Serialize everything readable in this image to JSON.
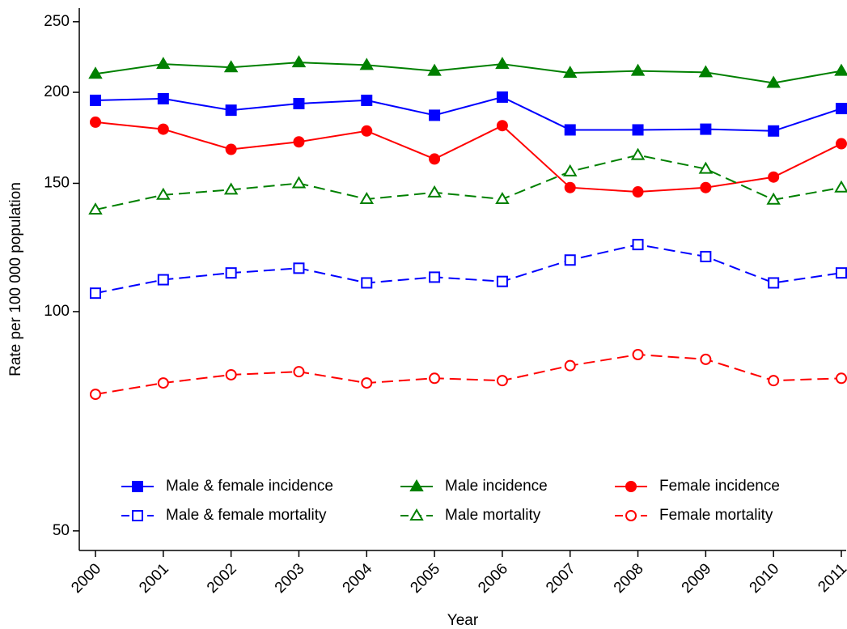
{
  "chart_data": {
    "type": "line",
    "log_y": true,
    "y_label": "Rate per 100 000 population",
    "x_label": "Year",
    "categories": [
      "2000",
      "2001",
      "2002",
      "2003",
      "2004",
      "2005",
      "2006",
      "2007",
      "2008",
      "2009",
      "2010",
      "2011"
    ],
    "ylim": [
      47,
      261
    ],
    "yticks": [
      50,
      100,
      150,
      200,
      250
    ],
    "series": [
      {
        "name": "Male & female incidence",
        "color": "#0000ff",
        "marker": "square",
        "filled": true,
        "dashed": false,
        "values": [
          195,
          196,
          189,
          193,
          195,
          186,
          197,
          177.6,
          177.6,
          178,
          177,
          190
        ]
      },
      {
        "name": "Male incidence",
        "color": "#008000",
        "marker": "triangle",
        "filled": true,
        "dashed": false,
        "values": [
          212,
          218.7,
          216.4,
          219.8,
          218,
          214,
          218.7,
          212.6,
          214,
          213,
          206,
          214
        ]
      },
      {
        "name": "Female incidence",
        "color": "#ff0000",
        "marker": "circle",
        "filled": true,
        "dashed": false,
        "values": [
          182,
          178,
          167,
          171,
          177,
          162,
          180,
          148,
          146,
          148,
          153,
          170
        ]
      },
      {
        "name": "Male & female mortality",
        "color": "#0000ff",
        "marker": "square",
        "filled": false,
        "dashed": true,
        "values": [
          106,
          110.6,
          113,
          114.7,
          109.5,
          111.5,
          110,
          117.7,
          123.6,
          119,
          109.5,
          113
        ]
      },
      {
        "name": "Male mortality",
        "color": "#008000",
        "marker": "triangle",
        "filled": false,
        "dashed": true,
        "values": [
          138,
          144.6,
          147,
          150,
          142.7,
          145.7,
          142.7,
          155.7,
          164,
          157,
          142.4,
          148
        ]
      },
      {
        "name": "Female mortality",
        "color": "#ff0000",
        "marker": "circle",
        "filled": false,
        "dashed": true,
        "values": [
          77,
          79.8,
          81.9,
          82.7,
          79.8,
          81,
          80.4,
          84.3,
          87.3,
          86,
          80.4,
          81
        ]
      }
    ]
  }
}
